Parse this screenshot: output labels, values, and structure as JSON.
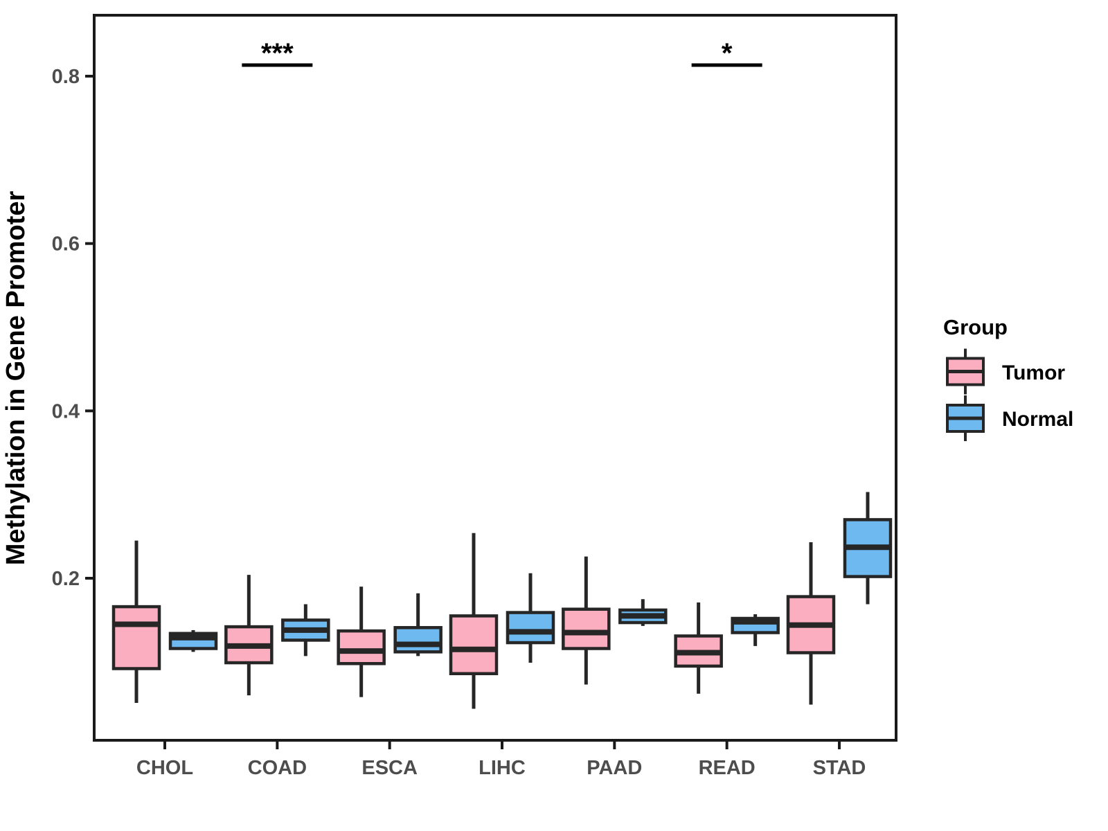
{
  "figure": {
    "ylabel": "Methylation in Gene Promoter",
    "xlabel": ""
  },
  "legend": {
    "title": "Group",
    "entries": [
      {
        "label": "Tumor",
        "color": "#FCAEC1"
      },
      {
        "label": "Normal",
        "color": "#6DB9F0"
      }
    ]
  },
  "colors": {
    "tumor_fill": "#FCAEC1",
    "normal_fill": "#6DB9F0",
    "box_stroke": "#262626",
    "axis_line": "#1A1A1A",
    "axis_text": "#4D4D4D",
    "title_text": "#000000"
  },
  "chart_data": {
    "type": "boxplot",
    "title": "",
    "xlabel": "",
    "ylabel": "Methylation in Gene Promoter",
    "categories": [
      "CHOL",
      "COAD",
      "ESCA",
      "LIHC",
      "PAAD",
      "READ",
      "STAD"
    ],
    "yticks": [
      0.2,
      0.4,
      0.6,
      0.8
    ],
    "ylim": [
      0.005,
      0.875
    ],
    "grid": false,
    "legend_position": "right",
    "legend_title": "Group",
    "series": [
      {
        "name": "Tumor",
        "fill": "#FCAEC1",
        "boxes": [
          {
            "category": "CHOL",
            "lo": 0.051,
            "q1": 0.092,
            "med": 0.145,
            "q3": 0.166,
            "hi": 0.245
          },
          {
            "category": "COAD",
            "lo": 0.06,
            "q1": 0.099,
            "med": 0.119,
            "q3": 0.142,
            "hi": 0.204
          },
          {
            "category": "ESCA",
            "lo": 0.058,
            "q1": 0.098,
            "med": 0.113,
            "q3": 0.137,
            "hi": 0.19
          },
          {
            "category": "LIHC",
            "lo": 0.044,
            "q1": 0.086,
            "med": 0.115,
            "q3": 0.155,
            "hi": 0.254
          },
          {
            "category": "PAAD",
            "lo": 0.073,
            "q1": 0.116,
            "med": 0.135,
            "q3": 0.163,
            "hi": 0.226
          },
          {
            "category": "READ",
            "lo": 0.062,
            "q1": 0.095,
            "med": 0.111,
            "q3": 0.131,
            "hi": 0.171
          },
          {
            "category": "STAD",
            "lo": 0.049,
            "q1": 0.111,
            "med": 0.144,
            "q3": 0.178,
            "hi": 0.243
          }
        ]
      },
      {
        "name": "Normal",
        "fill": "#6DB9F0",
        "boxes": [
          {
            "category": "CHOL",
            "lo": 0.112,
            "q1": 0.116,
            "med": 0.129,
            "q3": 0.134,
            "hi": 0.138
          },
          {
            "category": "COAD",
            "lo": 0.107,
            "q1": 0.126,
            "med": 0.138,
            "q3": 0.15,
            "hi": 0.169
          },
          {
            "category": "ESCA",
            "lo": 0.107,
            "q1": 0.112,
            "med": 0.121,
            "q3": 0.141,
            "hi": 0.182
          },
          {
            "category": "LIHC",
            "lo": 0.099,
            "q1": 0.123,
            "med": 0.136,
            "q3": 0.159,
            "hi": 0.206
          },
          {
            "category": "PAAD",
            "lo": 0.143,
            "q1": 0.147,
            "med": 0.155,
            "q3": 0.162,
            "hi": 0.175
          },
          {
            "category": "READ",
            "lo": 0.119,
            "q1": 0.135,
            "med": 0.148,
            "q3": 0.152,
            "hi": 0.157
          },
          {
            "category": "STAD",
            "lo": 0.169,
            "q1": 0.202,
            "med": 0.237,
            "q3": 0.27,
            "hi": 0.303
          }
        ]
      }
    ],
    "annotations": [
      {
        "category": "COAD",
        "label": "***"
      },
      {
        "category": "READ",
        "label": "*"
      }
    ]
  }
}
